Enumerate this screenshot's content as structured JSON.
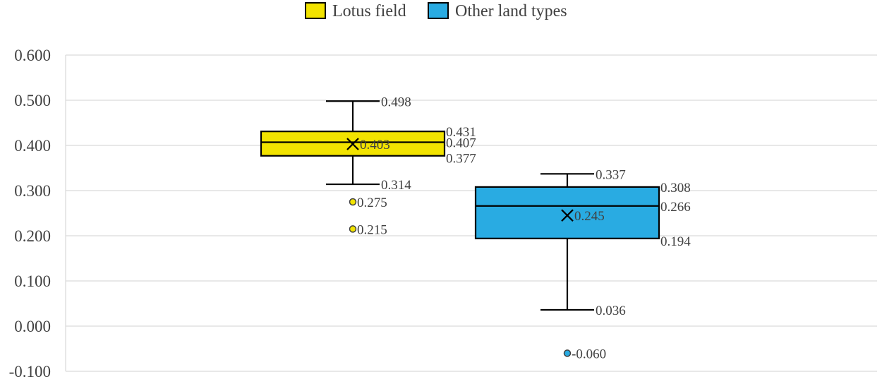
{
  "chart_data": {
    "type": "boxplot",
    "title": "",
    "xlabel": "",
    "ylabel": "",
    "ylim": [
      -0.1,
      0.6
    ],
    "y_ticks": [
      "0.600",
      "0.500",
      "0.400",
      "0.300",
      "0.200",
      "0.100",
      "0.000",
      "-0.100"
    ],
    "y_tick_values": [
      0.6,
      0.5,
      0.4,
      0.3,
      0.2,
      0.1,
      0.0,
      -0.1
    ],
    "grid": true,
    "legend_position": "top",
    "series": [
      {
        "name": "Lotus field",
        "color": "#f2e300",
        "whisker_high": 0.498,
        "q3": 0.431,
        "median": 0.407,
        "mean": 0.403,
        "q1": 0.377,
        "whisker_low": 0.314,
        "outliers": [
          0.275,
          0.215
        ],
        "labels": {
          "whisker_high": "0.498",
          "q3": "0.431",
          "median": "0.407",
          "mean": "0.403",
          "q1": "0.377",
          "whisker_low": "0.314",
          "outliers": [
            "0.275",
            "0.215"
          ]
        }
      },
      {
        "name": "Other land types",
        "color": "#29abe2",
        "whisker_high": 0.337,
        "q3": 0.308,
        "median": 0.266,
        "mean": 0.245,
        "q1": 0.194,
        "whisker_low": 0.036,
        "outliers": [
          -0.06
        ],
        "labels": {
          "whisker_high": "0.337",
          "q3": "0.308",
          "median": "0.266",
          "mean": "0.245",
          "q1": "0.194",
          "whisker_low": "0.036",
          "outliers": [
            "-0.060"
          ]
        }
      }
    ]
  }
}
